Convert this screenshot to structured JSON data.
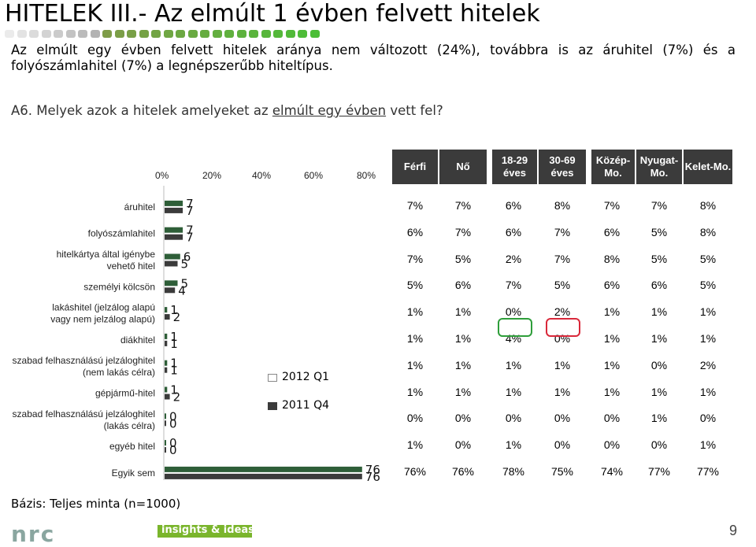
{
  "title": "HITELEK III.- Az elmúlt 1 évben felvett hitelek",
  "intro": "Az elmúlt egy évben felvett hitelek aránya nem változott (24%), továbbra is az áruhitel (7%) és a folyószámlahitel (7%) a legnépszerűbb hiteltípus.",
  "question": {
    "prefix": "A6. Melyek azok a hitelek amelyeket az ",
    "underlined": "elmúlt egy évben",
    "suffix": " vett fel?"
  },
  "basis": "Bázis: Teljes minta (n=1000)",
  "footer": {
    "tagline": "insights & ideas",
    "page": "9",
    "logo": "nrc"
  },
  "colors": {
    "series_2012": "#ffffff",
    "series_2011": "#3b3b3b",
    "bar_2012": "#2e5e38",
    "header_bg": "#3b3b3b",
    "accent": "#7ab52c",
    "circle_green": "#2e9e3a",
    "circle_red": "#d9283a"
  },
  "chart_data": {
    "type": "bar",
    "orientation": "horizontal",
    "x_ticks": [
      "0%",
      "20%",
      "40%",
      "60%",
      "80%"
    ],
    "xlim": [
      0,
      80
    ],
    "categories": [
      "áruhitel",
      "folyószámlahitel",
      "hitelkártya által igénybe vehető hitel",
      "személyi kölcsön",
      "lakáshitel (jelzálog alapú vagy nem jelzálog alapú)",
      "diákhitel",
      "szabad felhasználású jelzáloghitel (nem lakás célra)",
      "gépjármű-hitel",
      "szabad felhasználású jelzáloghitel (lakás célra)",
      "egyéb hitel",
      "Egyik sem"
    ],
    "series": [
      {
        "name": "2012 Q1",
        "values": [
          7,
          7,
          6,
          5,
          1,
          1,
          1,
          1,
          0,
          0,
          76
        ]
      },
      {
        "name": "2011 Q4",
        "values": [
          7,
          7,
          5,
          4,
          2,
          1,
          1,
          2,
          0,
          0,
          76
        ]
      }
    ],
    "legend_position": "center"
  },
  "table": {
    "headers": [
      "Férfi",
      "Nő",
      "18-29 éves",
      "30-69 éves",
      "Közép-Mo.",
      "Nyugat-Mo.",
      "Kelet-Mo."
    ],
    "rows": [
      [
        "7%",
        "7%",
        "6%",
        "8%",
        "7%",
        "7%",
        "8%"
      ],
      [
        "6%",
        "7%",
        "6%",
        "7%",
        "6%",
        "5%",
        "8%"
      ],
      [
        "7%",
        "5%",
        "2%",
        "7%",
        "8%",
        "5%",
        "5%"
      ],
      [
        "5%",
        "6%",
        "7%",
        "5%",
        "6%",
        "6%",
        "5%"
      ],
      [
        "1%",
        "1%",
        "0%",
        "2%",
        "1%",
        "1%",
        "1%"
      ],
      [
        "1%",
        "1%",
        "4%",
        "0%",
        "1%",
        "1%",
        "1%"
      ],
      [
        "1%",
        "1%",
        "1%",
        "1%",
        "1%",
        "0%",
        "2%"
      ],
      [
        "1%",
        "1%",
        "1%",
        "1%",
        "1%",
        "1%",
        "1%"
      ],
      [
        "0%",
        "0%",
        "0%",
        "0%",
        "0%",
        "1%",
        "0%"
      ],
      [
        "1%",
        "0%",
        "1%",
        "0%",
        "0%",
        "0%",
        "1%"
      ],
      [
        "76%",
        "76%",
        "78%",
        "75%",
        "74%",
        "77%",
        "77%"
      ]
    ]
  }
}
